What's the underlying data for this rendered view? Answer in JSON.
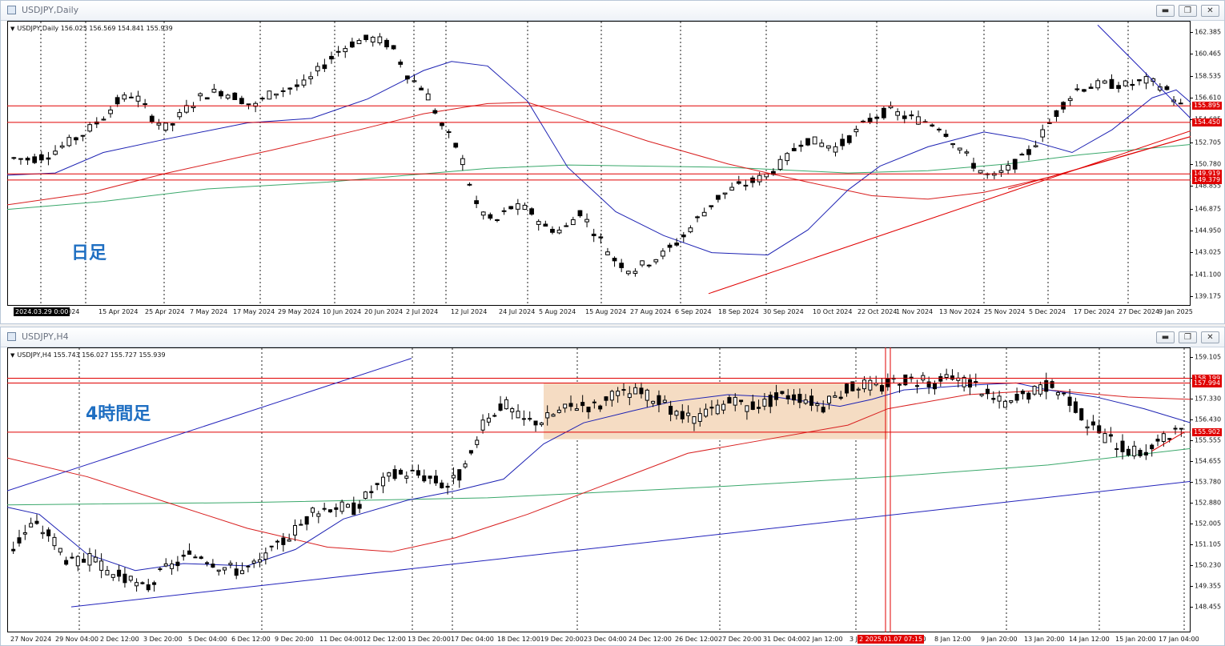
{
  "colors": {
    "candle": "#000000",
    "ma_blue": "#1d22b3",
    "ma_red": "#d81e1e",
    "ma_green": "#3aa86b",
    "hline_red": "#e00000",
    "trend_red": "#e00000",
    "channel_blue": "#2222bb",
    "range_box": "#f5dcc3",
    "label_blue": "#1f6fc2",
    "grid": "#9a9a9a"
  },
  "windows": [
    {
      "title": "USDJPY,Daily",
      "info": "USDJPY,Daily  156.025 156.569 154.841 155.939",
      "timeframe_label": "日足",
      "controls": [
        "minimize-icon",
        "restore-icon",
        "close-icon"
      ],
      "price_ticks": [
        "162.385",
        "160.465",
        "158.535",
        "156.610",
        "154.685",
        "152.705",
        "150.780",
        "148.855",
        "146.875",
        "144.950",
        "143.025",
        "141.100",
        "139.175"
      ],
      "price_badges": [
        {
          "text": "155.895",
          "value": 155.895,
          "color": "#e00000"
        },
        {
          "text": "154.450",
          "value": 154.45,
          "color": "#e00000"
        },
        {
          "text": "149.919",
          "value": 149.919,
          "color": "#e00000"
        },
        {
          "text": "149.379",
          "value": 149.379,
          "color": "#e00000"
        }
      ],
      "date_ticks": [
        "2024.03.29 0:00",
        "3 Apr 2024",
        "15 Apr 2024",
        "25 Apr 2024",
        "7 May 2024",
        "17 May 2024",
        "29 May 2024",
        "10 Jun 2024",
        "20 Jun 2024",
        "2 Jul 2024",
        "12 Jul 2024",
        "24 Jul 2024",
        "5 Aug 2024",
        "15 Aug 2024",
        "27 Aug 2024",
        "6 Sep 2024",
        "18 Sep 2024",
        "30 Sep 2024",
        "10 Oct 2024",
        "22 Oct 2024",
        "1 Nov 2024",
        "13 Nov 2024",
        "25 Nov 2024",
        "5 Dec 2024",
        "17 Dec 2024",
        "27 Dec 2024",
        "9 Jan 2025"
      ],
      "date_badge": "2024.03.29 0:00"
    },
    {
      "title": "USDJPY,H4",
      "info": "USDJPY,H4  155.743 156.027 155.727 155.939",
      "timeframe_label": "4時間足",
      "controls": [
        "minimize-icon",
        "restore-icon",
        "close-icon"
      ],
      "price_ticks": [
        "159.105",
        "158.230",
        "157.330",
        "156.430",
        "155.555",
        "154.655",
        "153.780",
        "152.880",
        "152.005",
        "151.105",
        "150.230",
        "149.355",
        "148.455"
      ],
      "price_badges": [
        {
          "text": "158.199",
          "value": 158.199,
          "color": "#e00000"
        },
        {
          "text": "157.994",
          "value": 157.994,
          "color": "#e00000"
        },
        {
          "text": "155.902",
          "value": 155.902,
          "color": "#e00000"
        }
      ],
      "date_ticks": [
        "27 Nov 2024",
        "29 Nov 04:00",
        "2 Dec 12:00",
        "3 Dec 20:00",
        "5 Dec 04:00",
        "6 Dec 12:00",
        "9 Dec 20:00",
        "11 Dec 04:00",
        "12 Dec 12:00",
        "13 Dec 20:00",
        "17 Dec 04:00",
        "18 Dec 12:00",
        "19 Dec 20:00",
        "23 Dec 04:00",
        "24 Dec 12:00",
        "26 Dec 12:00",
        "27 Dec 20:00",
        "31 Dec 04:00",
        "2 Jan 12:00",
        "3 Jan",
        "6 Jan 12:00",
        "8 Jan 12:00",
        "9 Jan 20:00",
        "13 Jan 20:00",
        "14 Jan 12:00",
        "15 Jan 20:00",
        "17 Jan 04:00"
      ],
      "date_badge": "2 2025.01.07 07:15"
    }
  ]
}
